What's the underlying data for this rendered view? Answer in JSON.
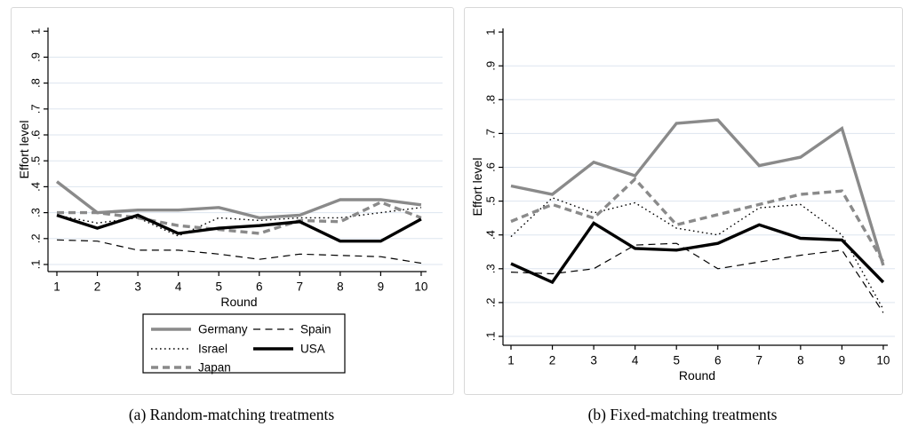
{
  "page": {
    "background": "#ffffff"
  },
  "colors": {
    "grid": "#dde5ef",
    "axis": "#000000",
    "panel_border": "#d8d8d8",
    "gray_series": "#8a8a8a",
    "black_series": "#000000"
  },
  "captions": {
    "a": "(a) Random-matching treatments",
    "b": "(b) Fixed-matching treatments"
  },
  "legend": {
    "columns": [
      [
        "Germany",
        "Israel",
        "Japan"
      ],
      [
        "Spain",
        "USA"
      ]
    ],
    "border_color": "#000000",
    "location": "boxed, centered below left panel x-axis"
  },
  "chart_data": [
    {
      "type": "line",
      "panel": "a",
      "title": "(a) Random-matching treatments",
      "xlabel": "Round",
      "ylabel": "Effort level",
      "x": [
        1,
        2,
        3,
        4,
        5,
        6,
        7,
        8,
        9,
        10
      ],
      "x_tick_labels": [
        "1",
        "2",
        "3",
        "4",
        "5",
        "6",
        "7",
        "8",
        "9",
        "10"
      ],
      "ylim": [
        0.1,
        1.0
      ],
      "y_tick_labels": [
        "1",
        ".9",
        ".8",
        ".7",
        ".6",
        ".5",
        ".4",
        ".3",
        ".2",
        ".1"
      ],
      "grid": true,
      "series": [
        {
          "name": "Germany",
          "color": "#8a8a8a",
          "width": 3.4,
          "dash": "",
          "values": [
            0.42,
            0.3,
            0.31,
            0.31,
            0.32,
            0.28,
            0.29,
            0.35,
            0.35,
            0.33
          ]
        },
        {
          "name": "Israel",
          "color": "#000000",
          "width": 1.4,
          "dash": "1.6 3.4",
          "values": [
            0.29,
            0.26,
            0.28,
            0.21,
            0.28,
            0.27,
            0.28,
            0.28,
            0.3,
            0.32
          ]
        },
        {
          "name": "Japan",
          "color": "#8a8a8a",
          "width": 3.4,
          "dash": "8 5",
          "values": [
            0.3,
            0.3,
            0.28,
            0.25,
            0.235,
            0.22,
            0.27,
            0.265,
            0.34,
            0.28
          ]
        },
        {
          "name": "Spain",
          "color": "#000000",
          "width": 1.2,
          "dash": "8 5.5",
          "values": [
            0.195,
            0.19,
            0.155,
            0.155,
            0.14,
            0.12,
            0.14,
            0.135,
            0.13,
            0.105
          ]
        },
        {
          "name": "USA",
          "color": "#000000",
          "width": 3.4,
          "dash": "",
          "values": [
            0.29,
            0.24,
            0.29,
            0.22,
            0.24,
            0.25,
            0.265,
            0.19,
            0.19,
            0.275
          ]
        }
      ]
    },
    {
      "type": "line",
      "panel": "b",
      "title": "(b) Fixed-matching treatments",
      "xlabel": "Round",
      "ylabel": "Effort level",
      "x": [
        1,
        2,
        3,
        4,
        5,
        6,
        7,
        8,
        9,
        10
      ],
      "x_tick_labels": [
        "1",
        "2",
        "3",
        "4",
        "5",
        "6",
        "7",
        "8",
        "9",
        "10"
      ],
      "ylim": [
        0.1,
        1.0
      ],
      "y_tick_labels": [
        "1",
        ".9",
        ".8",
        ".7",
        ".6",
        ".5",
        ".4",
        ".3",
        ".2",
        ".1"
      ],
      "grid": true,
      "series": [
        {
          "name": "Germany",
          "color": "#8a8a8a",
          "width": 3.4,
          "dash": "",
          "values": [
            0.545,
            0.52,
            0.615,
            0.575,
            0.73,
            0.74,
            0.605,
            0.63,
            0.715,
            0.31
          ]
        },
        {
          "name": "Israel",
          "color": "#000000",
          "width": 1.4,
          "dash": "1.6 3.4",
          "values": [
            0.395,
            0.51,
            0.465,
            0.495,
            0.42,
            0.4,
            0.48,
            0.49,
            0.4,
            0.18
          ]
        },
        {
          "name": "Japan",
          "color": "#8a8a8a",
          "width": 3.4,
          "dash": "8 5",
          "values": [
            0.44,
            0.49,
            0.45,
            0.565,
            0.43,
            0.46,
            0.49,
            0.52,
            0.53,
            0.32
          ]
        },
        {
          "name": "Spain",
          "color": "#000000",
          "width": 1.2,
          "dash": "8 5.5",
          "values": [
            0.29,
            0.285,
            0.3,
            0.37,
            0.375,
            0.3,
            0.32,
            0.34,
            0.355,
            0.17
          ]
        },
        {
          "name": "USA",
          "color": "#000000",
          "width": 3.4,
          "dash": "",
          "values": [
            0.315,
            0.26,
            0.435,
            0.36,
            0.355,
            0.375,
            0.43,
            0.39,
            0.385,
            0.26
          ]
        }
      ]
    }
  ]
}
